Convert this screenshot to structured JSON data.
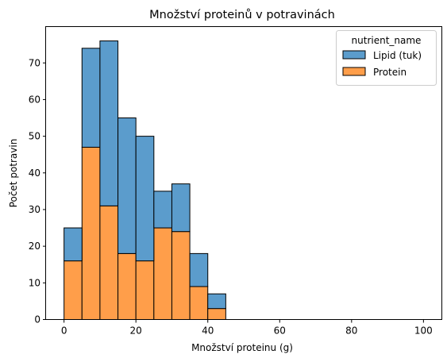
{
  "chart_data": {
    "type": "bar",
    "subtype": "stacked-histogram",
    "title": "Množství proteinů v potravinách",
    "xlabel": "Množství proteinu (g)",
    "ylabel": "Počet potravin",
    "xlim": [
      -5,
      105
    ],
    "ylim": [
      0,
      79.8
    ],
    "xticks": [
      0,
      20,
      40,
      60,
      80,
      100
    ],
    "yticks": [
      0,
      10,
      20,
      30,
      40,
      50,
      60,
      70
    ],
    "bin_edges": [
      0,
      5,
      10,
      15,
      20,
      25,
      30,
      35,
      40,
      45,
      50,
      55,
      60,
      65,
      70,
      75,
      80,
      85,
      90,
      95,
      100
    ],
    "legend": {
      "title": "nutrient_name",
      "placement": "top-right"
    },
    "grid": false,
    "series": [
      {
        "name": "Protein",
        "color": "#ff9e4a",
        "values": [
          16,
          47,
          31,
          18,
          16,
          25,
          24,
          9,
          3,
          0,
          0,
          0,
          0,
          0,
          0,
          0,
          0,
          0,
          0,
          0
        ]
      },
      {
        "name": "Lipid (tuk)",
        "color": "#5b9ccc",
        "values": [
          9,
          27,
          45,
          37,
          34,
          10,
          13,
          9,
          4,
          0,
          0,
          0,
          0,
          0,
          0,
          0,
          0,
          0,
          0,
          0
        ]
      }
    ],
    "legend_order": [
      "Lipid (tuk)",
      "Protein"
    ]
  }
}
